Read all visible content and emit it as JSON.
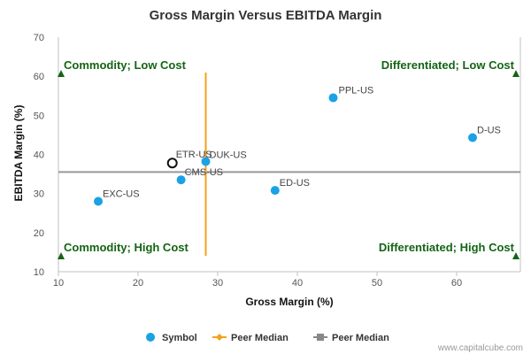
{
  "chart_data": {
    "type": "scatter",
    "title": "Gross Margin Versus EBITDA Margin",
    "xlabel": "Gross Margin (%)",
    "ylabel": "EBITDA Margin (%)",
    "xlim": [
      10,
      68
    ],
    "ylim": [
      10,
      70
    ],
    "x_ticks": [
      10,
      20,
      30,
      40,
      50,
      60
    ],
    "y_ticks": [
      10,
      20,
      30,
      40,
      50,
      60,
      70
    ],
    "grid": false,
    "points": [
      {
        "label": "EXC-US",
        "x": 15.0,
        "y": 28.0
      },
      {
        "label": "CMS-US",
        "x": 25.4,
        "y": 33.5
      },
      {
        "label": "DUK-US",
        "x": 28.5,
        "y": 38.2
      },
      {
        "label": "ED-US",
        "x": 37.2,
        "y": 30.8
      },
      {
        "label": "PPL-US",
        "x": 44.5,
        "y": 54.5
      },
      {
        "label": "D-US",
        "x": 62.0,
        "y": 44.3
      }
    ],
    "subject": {
      "label": "ETR-US",
      "x": 24.3,
      "y": 37.8
    },
    "peer_median_x": 28.5,
    "peer_median_y": 35.5,
    "quadrants": [
      {
        "label": "Commodity; Low Cost",
        "position": "top-left"
      },
      {
        "label": "Differentiated; Low Cost",
        "position": "top-right"
      },
      {
        "label": "Commodity; High Cost",
        "position": "bottom-left"
      },
      {
        "label": "Differentiated; High Cost",
        "position": "bottom-right"
      }
    ],
    "legend": {
      "placement": "bottom",
      "items": [
        {
          "label": "Symbol",
          "marker": "circle",
          "color": "#1aa1e6"
        },
        {
          "label": "Peer Median",
          "marker": "diamond-line",
          "color": "#f4a21a"
        },
        {
          "label": "Peer Median",
          "marker": "square-line",
          "color": "#888888"
        }
      ]
    },
    "colors": {
      "points": "#1aa1e6",
      "median_x": "#f4a21a",
      "median_y": "#999999",
      "quadrant": "#146414"
    }
  },
  "credit": "www.capitalcube.com"
}
